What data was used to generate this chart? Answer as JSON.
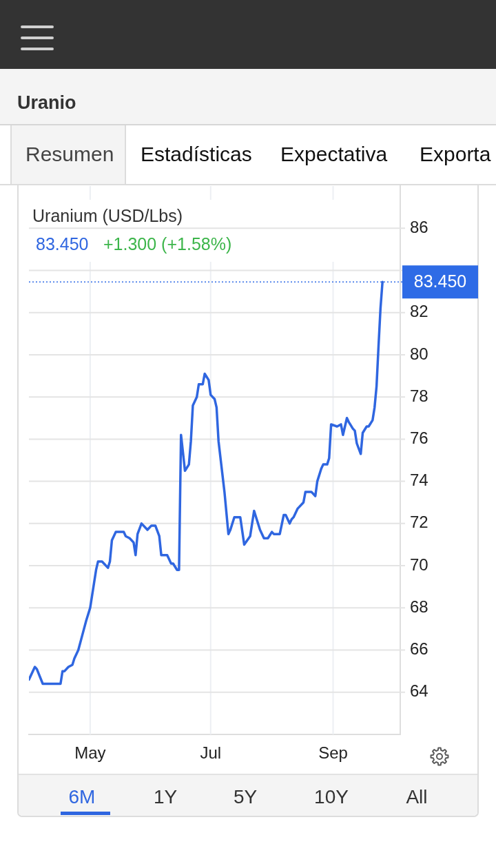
{
  "chart_data": {
    "type": "line",
    "title": "Uranium (USD/Lbs)",
    "annotations": [
      "Uranio",
      "Resumen",
      "Estadísticas",
      "Expectativa",
      "Exporta",
      "83.450",
      "+1.300 (+1.58%)",
      "6M",
      "1Y",
      "5Y",
      "10Y",
      "All"
    ],
    "x": [
      "--03-31",
      "--04-03",
      "--04-04",
      "--04-07",
      "--04-16",
      "--04-17",
      "--04-18",
      "--04-20",
      "--04-22",
      "--04-23",
      "--04-25",
      "--04-27",
      "--04-29",
      "--05-01",
      "--05-02",
      "--05-04",
      "--05-05",
      "--05-07",
      "--05-08",
      "--05-10",
      "--05-11",
      "--05-12",
      "--05-14",
      "--05-18",
      "--05-19",
      "--05-21",
      "--05-23",
      "--05-24",
      "--05-25",
      "--05-27",
      "--05-28",
      "--05-30",
      "--06-01",
      "--06-03",
      "--06-05",
      "--06-06",
      "--06-09",
      "--06-11",
      "--06-12",
      "--06-14",
      "--06-15",
      "--06-16",
      "--06-18",
      "--06-20",
      "--06-21",
      "--06-22",
      "--06-24",
      "--06-25",
      "--06-27",
      "--06-28",
      "--06-30",
      "--07-01",
      "--07-03",
      "--07-04",
      "--07-05",
      "--07-07",
      "--07-08",
      "--07-10",
      "--07-11",
      "--07-13",
      "--07-16",
      "--07-18",
      "--07-21",
      "--07-23",
      "--07-24",
      "--07-26",
      "--07-28",
      "--07-30",
      "--08-01",
      "--08-02",
      "--08-05",
      "--08-07",
      "--08-08",
      "--08-10",
      "--08-11",
      "--08-12",
      "--08-14",
      "--08-15",
      "--08-17",
      "--08-18",
      "--08-21",
      "--08-23",
      "--08-24",
      "--08-26",
      "--08-27",
      "--08-29",
      "--08-30",
      "--08-31",
      "--09-03",
      "--09-05",
      "--09-06",
      "--09-08",
      "--09-09",
      "--09-11",
      "--09-12",
      "--09-13",
      "--09-15",
      "--09-16",
      "--09-18",
      "--09-19",
      "--09-21",
      "--09-22",
      "--09-23",
      "--09-24",
      "--09-25",
      "--09-26"
    ],
    "series": [
      {
        "color": "#2f66e0",
        "values": [
          64.6,
          65.2,
          65.1,
          64.4,
          64.4,
          65.0,
          65.0,
          65.2,
          65.3,
          65.6,
          66.0,
          66.7,
          67.4,
          68.0,
          68.6,
          69.8,
          70.2,
          70.2,
          70.1,
          69.9,
          70.2,
          71.2,
          71.6,
          71.6,
          71.4,
          71.3,
          71.1,
          70.5,
          71.5,
          72.0,
          71.9,
          71.7,
          71.9,
          71.9,
          71.4,
          70.5,
          70.5,
          70.1,
          70.1,
          69.8,
          69.8,
          76.2,
          74.5,
          74.8,
          75.9,
          77.6,
          78.0,
          78.6,
          78.6,
          79.1,
          78.8,
          78.1,
          77.9,
          77.5,
          75.9,
          74.3,
          73.5,
          71.5,
          71.7,
          72.3,
          72.3,
          71.0,
          71.4,
          72.6,
          72.3,
          71.7,
          71.3,
          71.3,
          71.6,
          71.5,
          71.5,
          72.4,
          72.4,
          72.0,
          72.2,
          72.3,
          72.7,
          72.8,
          73.0,
          73.5,
          73.5,
          73.3,
          74.0,
          74.6,
          74.8,
          74.8,
          75.1,
          76.7,
          76.6,
          76.7,
          76.2,
          77.0,
          76.8,
          76.5,
          76.4,
          75.8,
          75.3,
          76.3,
          76.6,
          76.6,
          76.9,
          77.5,
          78.5,
          80.4,
          82.2,
          83.45
        ]
      }
    ],
    "xlim": [
      "--03-31",
      "--10-05"
    ],
    "xticks": [
      {
        "value": "--05-01",
        "label": "May"
      },
      {
        "value": "--07-01",
        "label": "Jul"
      },
      {
        "value": "--09-01",
        "label": "Sep"
      }
    ],
    "ylim": [
      62,
      88
    ],
    "yticks": [
      64,
      66,
      68,
      70,
      72,
      74,
      76,
      78,
      80,
      82,
      {
        "value": 84,
        "label": null
      },
      86
    ],
    "ref_lines": [
      {
        "axis": "y",
        "value": 83.45,
        "label": "83.450",
        "color": "#2e6be6",
        "line_style": "dotted"
      }
    ],
    "grid": true,
    "marker": "none",
    "line_style": "solid"
  }
}
